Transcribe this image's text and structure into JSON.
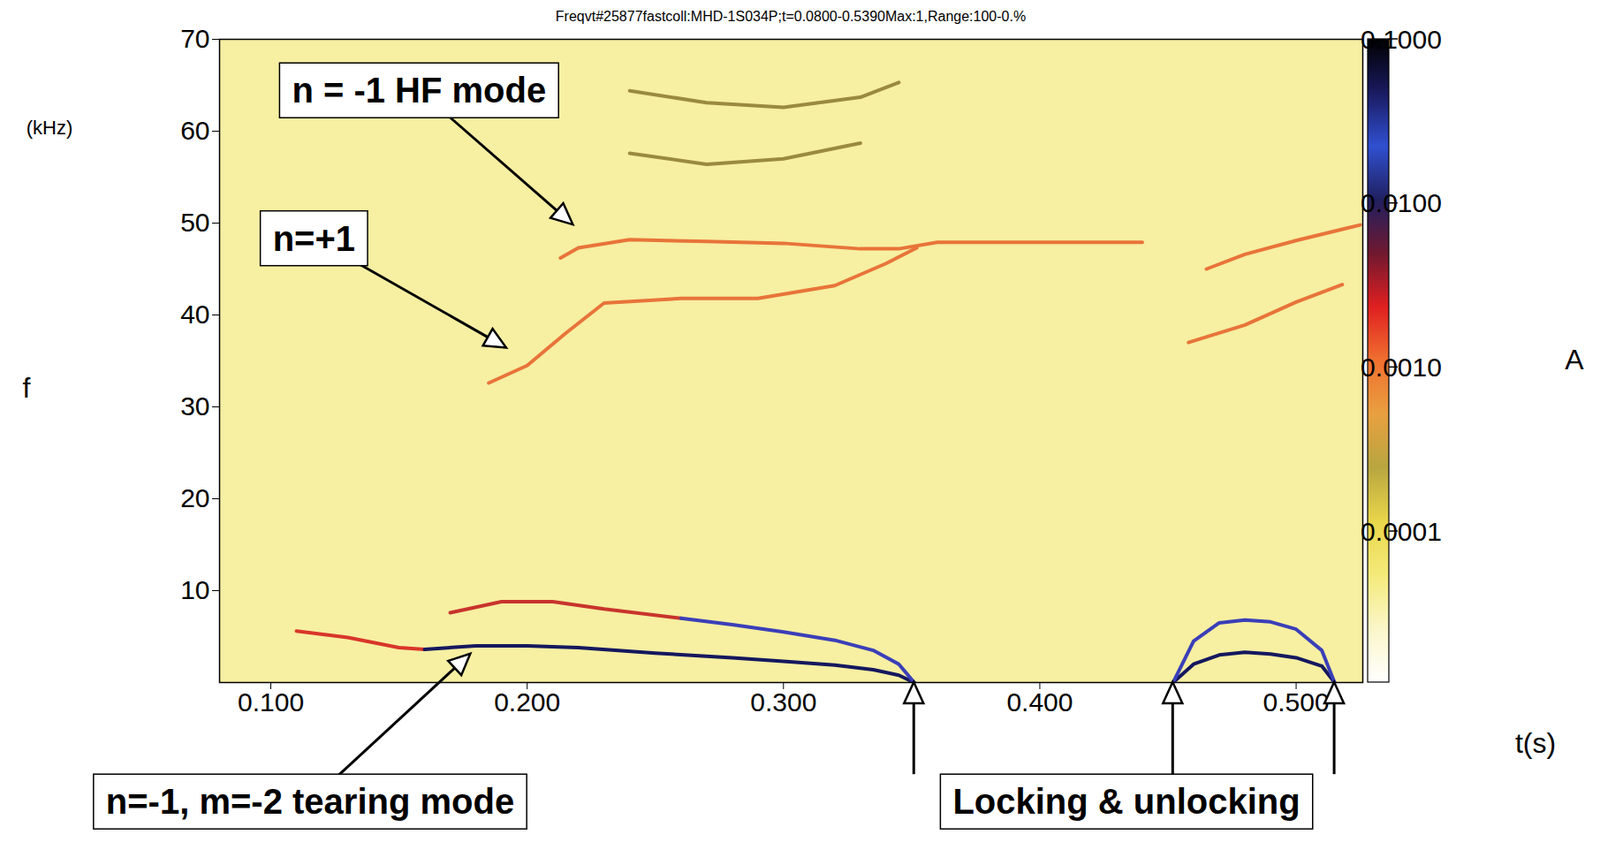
{
  "chart_data": {
    "type": "line",
    "title": "Freqvt#25877fastcoll:MHD-1S034P;t=0.0800-0.5390Max:1,Range:100-0.%",
    "x_label": "t(s)",
    "y_label": "f",
    "y_units": "(kHz)",
    "xlim": [
      0.08,
      0.526
    ],
    "xticks": [
      {
        "value": 0.1,
        "label": "0.100"
      },
      {
        "value": 0.2,
        "label": "0.200"
      },
      {
        "value": 0.3,
        "label": "0.300"
      },
      {
        "value": 0.4,
        "label": "0.400"
      },
      {
        "value": 0.5,
        "label": "0.500"
      }
    ],
    "ylim": [
      0,
      70
    ],
    "yticks": [
      10,
      20,
      30,
      40,
      50,
      60,
      70
    ],
    "series": [
      {
        "color": "#d8362a",
        "x": [
          0.11,
          0.13,
          0.15,
          0.16
        ],
        "values": [
          5.6,
          4.9,
          3.8,
          3.6
        ]
      },
      {
        "color": "#14185e",
        "x": [
          0.16,
          0.18,
          0.2,
          0.22,
          0.25,
          0.28,
          0.3,
          0.32,
          0.335,
          0.345,
          0.351,
          0.4,
          0.452,
          0.46,
          0.47,
          0.48,
          0.49,
          0.5,
          0.51,
          0.515
        ],
        "values": [
          3.6,
          4.0,
          4.0,
          3.8,
          3.2,
          2.7,
          2.3,
          1.9,
          1.4,
          0.8,
          0,
          null,
          0,
          2.0,
          3.0,
          3.3,
          3.1,
          2.7,
          1.8,
          0
        ]
      },
      {
        "color": "#c8342c",
        "x": [
          0.17,
          0.19,
          0.21,
          0.23,
          0.26
        ],
        "values": [
          7.6,
          8.8,
          8.8,
          8.0,
          7.0
        ]
      },
      {
        "color": "#3a3fb8",
        "x": [
          0.26,
          0.28,
          0.3,
          0.32,
          0.335,
          0.345,
          0.351,
          0.4,
          0.452,
          0.46,
          0.47,
          0.48,
          0.49,
          0.5,
          0.51,
          0.515
        ],
        "values": [
          7.0,
          6.3,
          5.5,
          4.6,
          3.5,
          2.0,
          0,
          null,
          0,
          4.5,
          6.5,
          6.8,
          6.6,
          5.8,
          3.5,
          0
        ]
      },
      {
        "color": "#e8743a",
        "x": [
          0.213,
          0.22,
          0.24,
          0.27,
          0.3,
          0.33,
          0.345,
          0.36,
          0.4,
          0.44,
          0.452,
          0.465,
          0.48,
          0.5,
          0.525
        ],
        "values": [
          46.2,
          47.3,
          48.2,
          48.0,
          47.8,
          47.2,
          47.2,
          47.9,
          47.9,
          47.9,
          null,
          45.0,
          46.6,
          48.1,
          49.8
        ]
      },
      {
        "color": "#e8743a",
        "x": [
          0.185,
          0.2,
          0.215,
          0.23,
          0.26,
          0.29,
          0.32,
          0.34,
          0.352,
          0.4,
          0.458,
          0.48,
          0.5,
          0.518
        ],
        "values": [
          32.6,
          34.5,
          38.0,
          41.3,
          41.8,
          41.8,
          43.2,
          45.6,
          47.3,
          null,
          37.0,
          38.9,
          41.4,
          43.3
        ]
      },
      {
        "color": "#9a8a40",
        "x": [
          0.24,
          0.27,
          0.3,
          0.33,
          0.345
        ],
        "values": [
          64.4,
          63.1,
          62.6,
          63.7,
          65.3
        ]
      },
      {
        "color": "#9a8a40",
        "x": [
          0.24,
          0.27,
          0.3,
          0.33
        ],
        "values": [
          57.6,
          56.4,
          57.0,
          58.7
        ]
      }
    ],
    "annotations": [
      {
        "text": "n = -1 HF mode",
        "at": [
          0.158,
          64.4
        ],
        "target": [
          [
            0.218,
            49.8
          ]
        ]
      },
      {
        "text": "n=+1",
        "at": [
          0.117,
          48.3
        ],
        "target": [
          [
            0.192,
            36.4
          ]
        ]
      },
      {
        "text": "n=-1, m=-2 tearing mode",
        "at": [
          0.1155,
          -13
        ],
        "target": [
          [
            0.178,
            3.1
          ]
        ]
      },
      {
        "text": "Locking & unlocking",
        "at": [
          0.434,
          -13
        ],
        "target": [
          [
            0.351,
            0
          ],
          [
            0.452,
            0
          ],
          [
            0.515,
            0
          ]
        ]
      }
    ],
    "colorbar": {
      "label": "A",
      "log": true,
      "range": [
        1.2e-05,
        0.1
      ],
      "ticks": [
        {
          "value": 0.1,
          "label": "0.1000"
        },
        {
          "value": 0.01,
          "label": "0.0100"
        },
        {
          "value": 0.001,
          "label": "0.0010"
        },
        {
          "value": 0.0001,
          "label": "0.0001"
        }
      ],
      "colors": [
        "#ffffff",
        "#fbf6c8",
        "#f4ea7a",
        "#e9d64a",
        "#b8a640",
        "#e8a040",
        "#f07030",
        "#e02020",
        "#701830",
        "#202060",
        "#3050d0",
        "#1a1a60",
        "#000000"
      ]
    }
  }
}
